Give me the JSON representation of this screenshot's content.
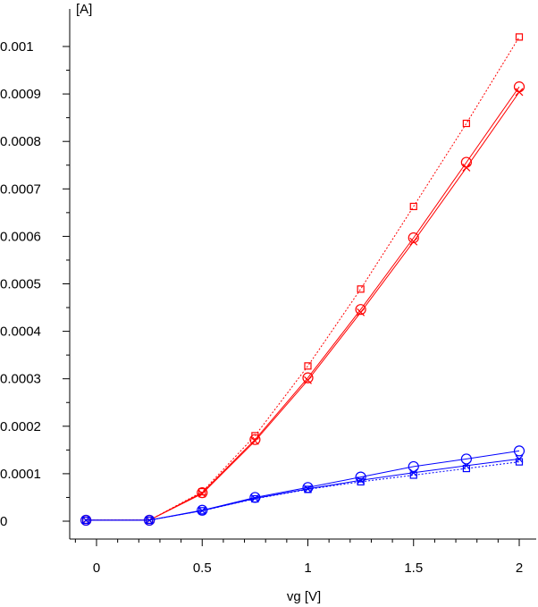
{
  "chart_data": {
    "type": "line",
    "xlabel": "vg [V]",
    "ylabel": "[A]",
    "xlim": [
      -0.1,
      2.08
    ],
    "ylim": [
      -4e-05,
      0.00107
    ],
    "x_ticks": [
      0,
      0.5,
      1,
      1.5,
      2
    ],
    "x_tick_labels": [
      "0",
      "0.5",
      "1",
      "1.5",
      "2"
    ],
    "y_ticks": [
      0,
      0.0001,
      0.0002,
      0.0003,
      0.0004,
      0.0005,
      0.0006,
      0.0007,
      0.0008,
      0.0009,
      0.001
    ],
    "y_tick_labels": [
      "0",
      "0.0001",
      "0.0002",
      "0.0003",
      "0.0004",
      "0.0005",
      "0.0006",
      "0.0007",
      "0.0008",
      "0.0009",
      "0.001"
    ],
    "grid": false,
    "legend": "none",
    "x": [
      -0.05,
      0.25,
      0.5,
      0.75,
      1.0,
      1.25,
      1.5,
      1.75,
      2.0
    ],
    "series": [
      {
        "marker": "square",
        "color": "#ff0000",
        "dash": "dotted",
        "values": [
          2e-06,
          2e-06,
          6.2e-05,
          0.00018,
          0.000327,
          0.000489,
          0.000663,
          0.000838,
          0.00102
        ]
      },
      {
        "marker": "circle",
        "color": "#ff0000",
        "dash": "solid",
        "values": [
          2e-06,
          2e-06,
          6e-05,
          0.000172,
          0.000302,
          0.000446,
          0.000597,
          0.000756,
          0.000915
        ]
      },
      {
        "marker": "cross",
        "color": "#ff0000",
        "dash": "solid",
        "values": [
          2e-06,
          2e-06,
          5.8e-05,
          0.000169,
          0.000297,
          0.00044,
          0.000589,
          0.000745,
          0.000904
        ]
      },
      {
        "marker": "circle",
        "color": "#0000ff",
        "dash": "solid",
        "values": [
          2e-06,
          2e-06,
          2.3e-05,
          5e-05,
          7.1e-05,
          9.3e-05,
          0.000115,
          0.000131,
          0.000148
        ]
      },
      {
        "marker": "cross",
        "color": "#0000ff",
        "dash": "solid",
        "values": [
          2e-06,
          2e-06,
          2.2e-05,
          4.8e-05,
          6.8e-05,
          8.6e-05,
          0.000102,
          0.000117,
          0.000131
        ]
      },
      {
        "marker": "square",
        "color": "#0000ff",
        "dash": "dotted",
        "values": [
          2e-06,
          2e-06,
          2.2e-05,
          4.7e-05,
          6.7e-05,
          8.3e-05,
          9.7e-05,
          0.000111,
          0.000125
        ]
      }
    ]
  }
}
